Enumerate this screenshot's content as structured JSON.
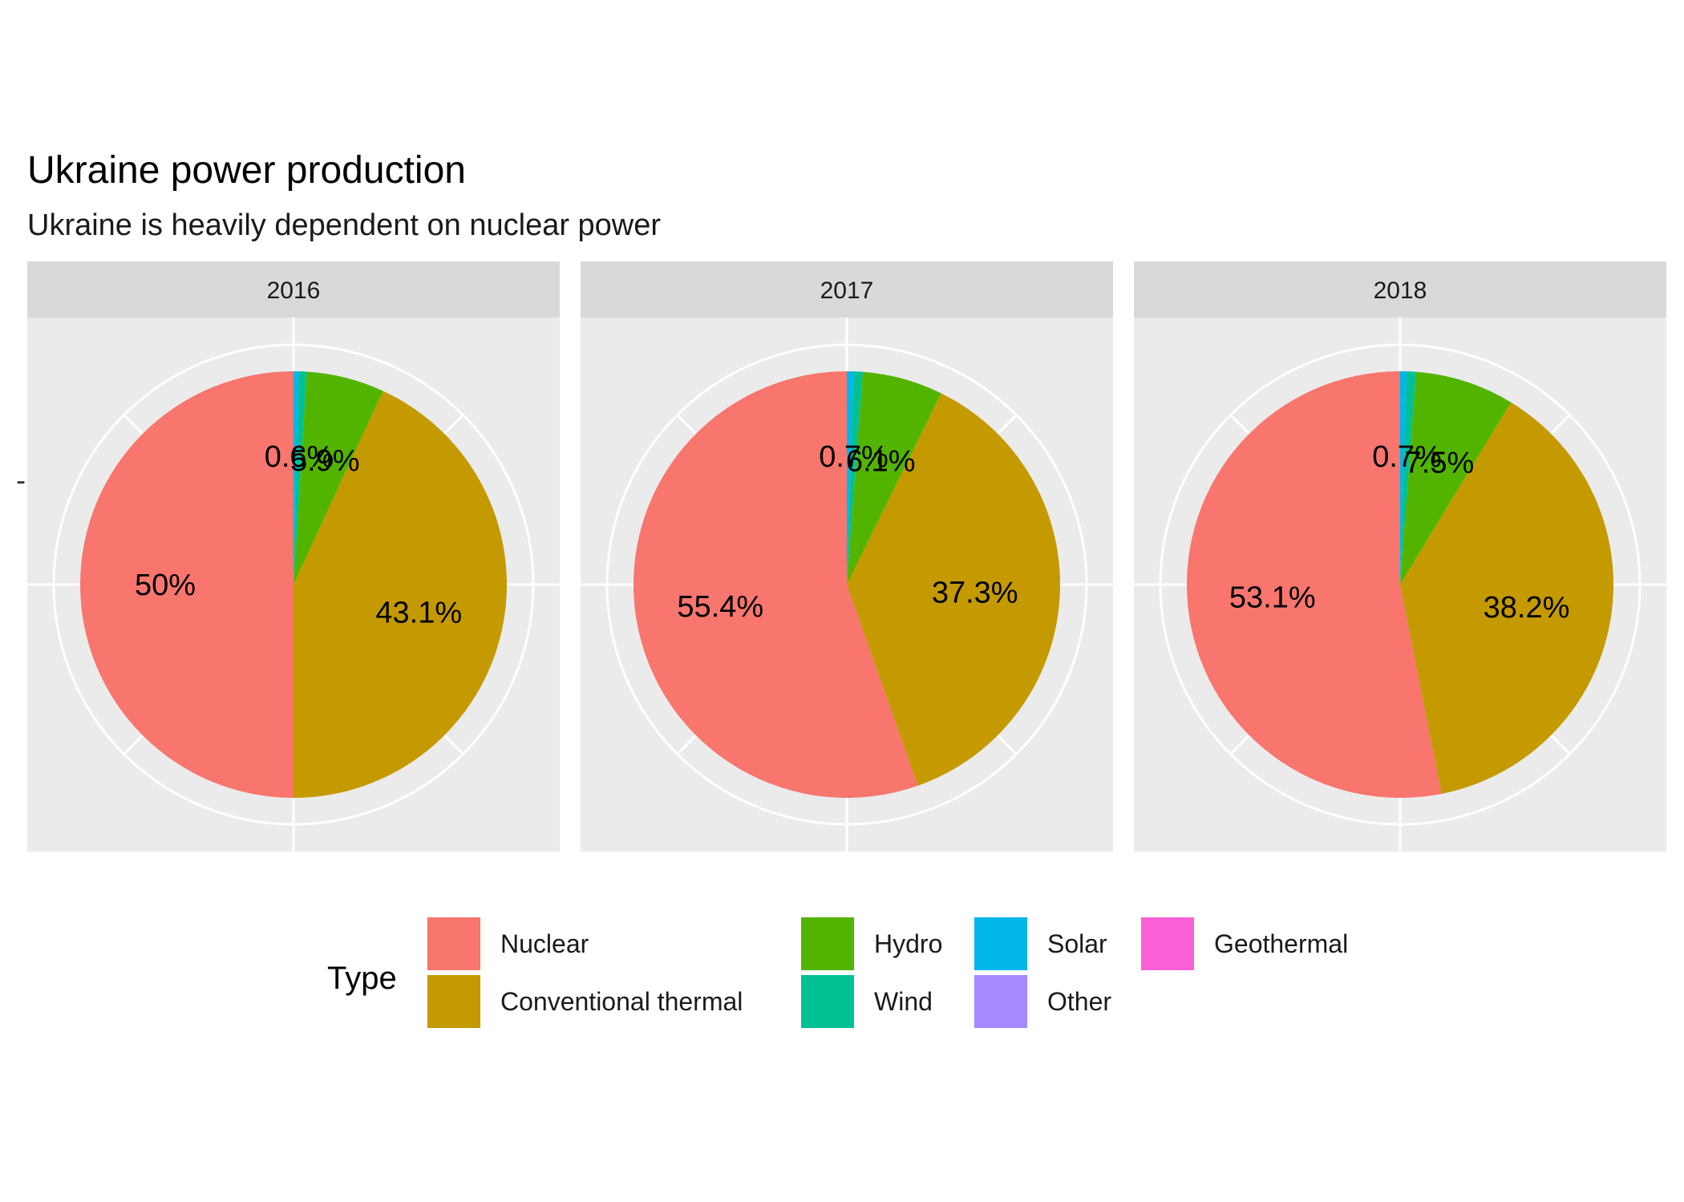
{
  "chart_data": {
    "type": "pie",
    "title": "Ukraine power production",
    "subtitle": "Ukraine is heavily dependent on nuclear power",
    "legend": {
      "title": "Type",
      "placement": "bottom",
      "entries": [
        {
          "name": "Nuclear",
          "color": "#F8766D"
        },
        {
          "name": "Conventional thermal",
          "color": "#C49A00"
        },
        {
          "name": "Hydro",
          "color": "#53B400"
        },
        {
          "name": "Wind",
          "color": "#00C094"
        },
        {
          "name": "Solar",
          "color": "#00B6EB"
        },
        {
          "name": "Other",
          "color": "#A58AFF"
        },
        {
          "name": "Geothermal",
          "color": "#FB61D7"
        }
      ]
    },
    "facets": [
      {
        "label": "2016",
        "slices": [
          {
            "name": "Nuclear",
            "value": 50.0,
            "label": "50%"
          },
          {
            "name": "Conventional thermal",
            "value": 43.1,
            "label": "43.1%"
          },
          {
            "name": "Hydro",
            "value": 5.9,
            "label": "5.9%"
          },
          {
            "name": "Wind",
            "value": 0.6,
            "label": "0.6%"
          },
          {
            "name": "Solar",
            "value": 0.4,
            "label": ""
          }
        ]
      },
      {
        "label": "2017",
        "slices": [
          {
            "name": "Nuclear",
            "value": 55.4,
            "label": "55.4%"
          },
          {
            "name": "Conventional thermal",
            "value": 37.3,
            "label": "37.3%"
          },
          {
            "name": "Hydro",
            "value": 6.1,
            "label": "6.1%"
          },
          {
            "name": "Wind",
            "value": 0.7,
            "label": "0.7%"
          },
          {
            "name": "Solar",
            "value": 0.5,
            "label": ""
          }
        ]
      },
      {
        "label": "2018",
        "slices": [
          {
            "name": "Nuclear",
            "value": 53.1,
            "label": "53.1%"
          },
          {
            "name": "Conventional thermal",
            "value": 38.2,
            "label": "38.2%"
          },
          {
            "name": "Hydro",
            "value": 7.5,
            "label": "7.5%"
          },
          {
            "name": "Wind",
            "value": 0.7,
            "label": "0.7%"
          },
          {
            "name": "Solar",
            "value": 0.5,
            "label": ""
          }
        ]
      }
    ],
    "grid": true
  }
}
